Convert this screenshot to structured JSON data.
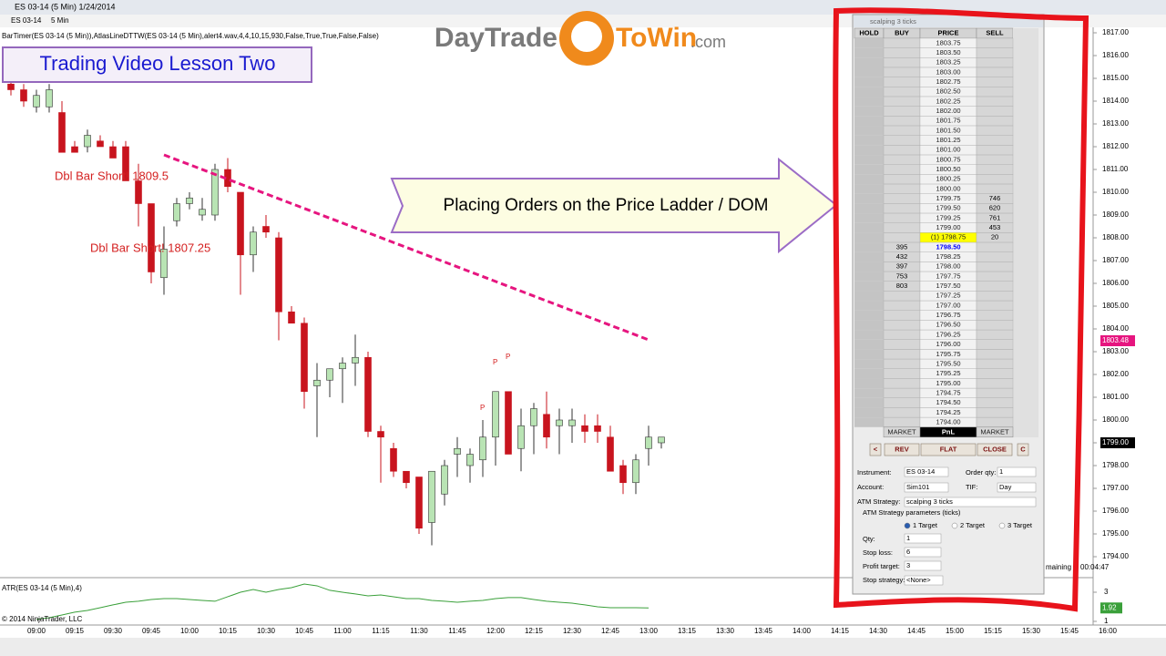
{
  "window": {
    "title": "ES 03-14 (5 Min)  1/24/2014",
    "instrument": "ES 03-14",
    "interval": "5 Min"
  },
  "indicator_label": "BarTimer(ES 03-14 (5 Min)),AtlasLineDTTW(ES 03-14 (5 Min),alert4.wav,4,4,10,15,930,False,True,True,False,False)",
  "overlays": {
    "lesson": "Trading Video Lesson Two",
    "arrow_text": "Placing Orders on the Price Ladder / DOM",
    "logo": {
      "left": "DayTrade",
      "right": "ToWin",
      "suffix": ".com"
    }
  },
  "chart_data": [
    {
      "type": "candlestick",
      "up_color": "#b9e4b4",
      "down_color": "#c8141e",
      "outline_color": "#333333",
      "open": [
        1814.75,
        1814.5,
        1813.75,
        1813.75,
        1813.5,
        1812,
        1812,
        1812.25,
        1812,
        1812,
        1810.5,
        1809.5,
        1806.25,
        1808.75,
        1809.5,
        1809,
        1809,
        1811,
        1810,
        1807.25,
        1808.5,
        1808,
        1804.75,
        1804.25,
        1801.5,
        1801.75,
        1802.25,
        1802.5,
        1802.75,
        1799.5,
        1798.75,
        1797.75,
        1797.5,
        1795.5,
        1796.75,
        1798.5,
        1798,
        1798.25,
        1799.25,
        1801.25,
        1798.75,
        1799.75,
        1800.25,
        1799.75,
        1799.75,
        1799.75,
        1799.75,
        1799.25,
        1798,
        1797.25,
        1798.75,
        1799
      ],
      "high": [
        1815,
        1814.75,
        1814.5,
        1814.75,
        1814,
        1812.25,
        1812.75,
        1812.5,
        1812.25,
        1812.25,
        1811.25,
        1809.5,
        1808.5,
        1809.75,
        1810,
        1809.75,
        1811.25,
        1811.5,
        1810,
        1808.5,
        1809,
        1808.25,
        1805,
        1804.5,
        1802.5,
        1802.25,
        1802.75,
        1803.75,
        1803,
        1799.75,
        1799,
        1797.75,
        1797.5,
        1797.75,
        1798.25,
        1799.25,
        1798.75,
        1800,
        1801.25,
        1801.25,
        1800.5,
        1800.75,
        1801.25,
        1800.5,
        1800.5,
        1800.25,
        1800.25,
        1799.75,
        1798.25,
        1798.5,
        1799.75,
        1799.25
      ],
      "low": [
        1814.25,
        1813.75,
        1813.5,
        1813.5,
        1811.75,
        1811.75,
        1811.75,
        1812,
        1811.5,
        1810.5,
        1808.5,
        1806,
        1805.5,
        1808.5,
        1809.25,
        1808.75,
        1808.75,
        1810,
        1805.5,
        1806.5,
        1808,
        1803.5,
        1804.25,
        1800.5,
        1799.25,
        1801,
        1800.75,
        1801.5,
        1799.25,
        1797.25,
        1797.5,
        1797,
        1795,
        1794.5,
        1796.25,
        1797.5,
        1797.25,
        1797.5,
        1798,
        1798.5,
        1797.75,
        1798.5,
        1798.75,
        1798.5,
        1799,
        1799,
        1799,
        1797.75,
        1796.75,
        1796.75,
        1798,
        1798.75
      ],
      "close": [
        1814.5,
        1814,
        1814.25,
        1814.5,
        1811.75,
        1811.75,
        1812.5,
        1812,
        1811.5,
        1810.5,
        1809.5,
        1806.5,
        1807.5,
        1809.5,
        1809.75,
        1809.25,
        1811,
        1810.25,
        1807.25,
        1808.25,
        1808.25,
        1804.75,
        1804.25,
        1801.25,
        1801.75,
        1802.25,
        1802.5,
        1802.75,
        1799.5,
        1799.25,
        1797.75,
        1797.25,
        1795.25,
        1797.75,
        1798,
        1798.75,
        1798.5,
        1799.25,
        1801.25,
        1798.5,
        1799.75,
        1800.5,
        1799.25,
        1800,
        1800,
        1799.5,
        1799.5,
        1797.75,
        1797.25,
        1798.25,
        1799.25,
        1799.25
      ],
      "ylim": [
        1793.16,
        1817.32
      ],
      "yticks": [
        {
          "value": 1817,
          "label": "1817.00"
        },
        {
          "value": 1816,
          "label": "1816.00"
        },
        {
          "value": 1815,
          "label": "1815.00"
        },
        {
          "value": 1814,
          "label": "1814.00"
        },
        {
          "value": 1813,
          "label": "1813.00"
        },
        {
          "value": 1812,
          "label": "1812.00"
        },
        {
          "value": 1811,
          "label": "1811.00"
        },
        {
          "value": 1810,
          "label": "1810.00"
        },
        {
          "value": 1809,
          "label": "1809.00"
        },
        {
          "value": 1808,
          "label": "1808.00"
        },
        {
          "value": 1807,
          "label": "1807.00"
        },
        {
          "value": 1806,
          "label": "1806.00"
        },
        {
          "value": 1805,
          "label": "1805.00"
        },
        {
          "value": 1804,
          "label": "1804.00"
        },
        {
          "value": 1803,
          "label": "1803.00"
        },
        {
          "value": 1802,
          "label": "1802.00"
        },
        {
          "value": 1801,
          "label": "1801.00"
        },
        {
          "value": 1800,
          "label": "1800.00"
        },
        {
          "value": 1799,
          "label": "1799.00"
        },
        {
          "value": 1798,
          "label": "1798.00"
        },
        {
          "value": 1797,
          "label": "1797.00"
        },
        {
          "value": 1796,
          "label": "1796.00"
        },
        {
          "value": 1795,
          "label": "1795.00"
        },
        {
          "value": 1794,
          "label": "1794.00"
        }
      ],
      "x_labels": [
        "09:00",
        "09:15",
        "09:30",
        "09:45",
        "10:00",
        "10:15",
        "10:30",
        "10:45",
        "11:00",
        "11:15",
        "11:30",
        "11:45",
        "12:00",
        "12:15",
        "12:30",
        "12:45",
        "13:00",
        "13:15",
        "13:30",
        "13:45",
        "14:00",
        "14:15",
        "14:30",
        "14:45",
        "15:00",
        "15:15",
        "15:30",
        "15:45",
        "16:00"
      ],
      "price_tags": [
        {
          "value": 1803.48,
          "label": "1803.48",
          "color": "#e6157f"
        },
        {
          "value": 1799,
          "label": "1799.00",
          "color": "#000000"
        }
      ],
      "annotations": [
        "Dbl Bar Short! 1809.5",
        "Dbl Bar Short! 1807.25",
        "P",
        "P",
        "P"
      ],
      "timer": {
        "label": "maining",
        "time": "00:04:47"
      },
      "copyright": "© 2014 NinjaTrader, LLC"
    },
    {
      "type": "line",
      "label": "ATR(ES 03-14 (5 Min),4)",
      "color": "#3aa03a",
      "values": [
        null,
        null,
        1.13,
        1.25,
        1.44,
        1.63,
        1.75,
        1.94,
        2.13,
        2.31,
        2.38,
        2.5,
        2.56,
        2.56,
        2.5,
        2.44,
        2.38,
        2.69,
        3,
        3.19,
        3,
        3.19,
        3.31,
        3.56,
        3.44,
        3.13,
        3,
        2.88,
        2.75,
        2.81,
        2.69,
        2.56,
        2.56,
        2.44,
        2.38,
        2.31,
        2.38,
        2.44,
        2.56,
        2.63,
        2.63,
        2.5,
        2.38,
        2.31,
        2.25,
        2.13,
        2,
        1.94,
        1.94,
        1.94,
        1.92,
        null
      ],
      "ylim": [
        0.75,
        3.75
      ],
      "yticks": [
        1,
        3
      ],
      "last_value": 1.92
    }
  ],
  "dom": {
    "title": "scalping 3 ticks",
    "headers": [
      "HOLD",
      "BUY",
      "PRICE",
      "SELL"
    ],
    "rows": [
      {
        "price": "1803.75"
      },
      {
        "price": "1803.50"
      },
      {
        "price": "1803.25"
      },
      {
        "price": "1803.00"
      },
      {
        "price": "1802.75"
      },
      {
        "price": "1802.50"
      },
      {
        "price": "1802.25"
      },
      {
        "price": "1802.00"
      },
      {
        "price": "1801.75"
      },
      {
        "price": "1801.50"
      },
      {
        "price": "1801.25"
      },
      {
        "price": "1801.00"
      },
      {
        "price": "1800.75"
      },
      {
        "price": "1800.50"
      },
      {
        "price": "1800.25"
      },
      {
        "price": "1800.00"
      },
      {
        "price": "1799.75",
        "sell": 746
      },
      {
        "price": "1799.50",
        "sell": 620
      },
      {
        "price": "1799.25",
        "sell": 761
      },
      {
        "price": "1799.00",
        "sell": 453
      },
      {
        "price": "(1) 1798.75",
        "sell": 20,
        "highlight": "#ffff00"
      },
      {
        "price": "1798.50",
        "buy": 395,
        "color": "#0000ff"
      },
      {
        "price": "1798.25",
        "buy": 432
      },
      {
        "price": "1798.00",
        "buy": 397
      },
      {
        "price": "1797.75",
        "buy": 753
      },
      {
        "price": "1797.50",
        "buy": 803
      },
      {
        "price": "1797.25"
      },
      {
        "price": "1797.00"
      },
      {
        "price": "1796.75"
      },
      {
        "price": "1796.50"
      },
      {
        "price": "1796.25"
      },
      {
        "price": "1796.00"
      },
      {
        "price": "1795.75"
      },
      {
        "price": "1795.50"
      },
      {
        "price": "1795.25"
      },
      {
        "price": "1795.00"
      },
      {
        "price": "1794.75"
      },
      {
        "price": "1794.50"
      },
      {
        "price": "1794.25"
      },
      {
        "price": "1794.00"
      }
    ],
    "footer": [
      "MARKET",
      "PnL",
      "MARKET"
    ],
    "buttons": [
      "<",
      "REV",
      "FLAT",
      "CLOSE",
      "C"
    ],
    "form": {
      "instrument_label": "Instrument:",
      "instrument": "ES 03-14",
      "qty_label": "Order qty:",
      "qty": "1",
      "account_label": "Account:",
      "account": "Sim101",
      "tif_label": "TIF:",
      "tif": "Day",
      "atm_label": "ATM Strategy:",
      "atm": "scalping 3 ticks",
      "params_label": "ATM Strategy parameters (ticks)",
      "targets": [
        "1 Target",
        "2 Target",
        "3 Target"
      ],
      "qty2_label": "Qty:",
      "qty2": "1",
      "stop_label": "Stop loss:",
      "stop": "6",
      "profit_label": "Profit target:",
      "profit": "3",
      "stop_strategy_label": "Stop strategy:",
      "stop_strategy": "<None>"
    }
  }
}
